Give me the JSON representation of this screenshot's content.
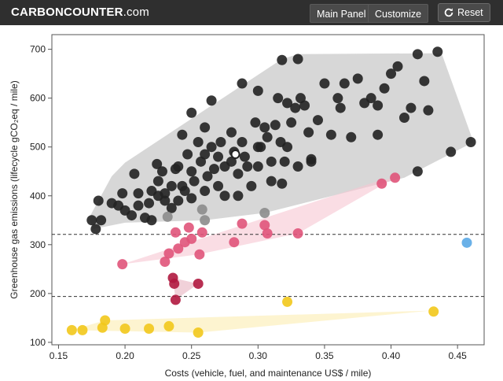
{
  "header": {
    "logo_bold": "CARBON",
    "logo_mid": "COUNTER",
    "logo_suffix": ".com",
    "main_panel_label": "Main Panel",
    "customize_label": "Customize",
    "reset_label": "Reset",
    "reset_icon": "refresh-icon",
    "background_color": "#2f2f2f"
  },
  "chart_data": {
    "type": "scatter",
    "xlabel": "Costs (vehicle, fuel, and maintenance US$ / mile)",
    "ylabel": "Greenhouse gas emissions (lifecycle gCO₂eq / mile)",
    "xlim": [
      0.145,
      0.47
    ],
    "ylim": [
      95,
      730
    ],
    "xticks": [
      0.15,
      0.2,
      0.25,
      0.3,
      0.35,
      0.4,
      0.45
    ],
    "xtick_labels": [
      "0.15",
      "0.20",
      "0.25",
      "0.30",
      "0.35",
      "0.40",
      "0.45"
    ],
    "yticks": [
      100,
      200,
      300,
      400,
      500,
      600,
      700
    ],
    "ytick_labels": [
      "100",
      "200",
      "300",
      "400",
      "500",
      "600",
      "700"
    ],
    "reference_lines": [
      {
        "y": 321,
        "style": "dashed",
        "color": "#333333"
      },
      {
        "y": 194,
        "style": "dashed",
        "color": "#333333"
      }
    ],
    "regions": [
      {
        "fill": "#bdbdbd",
        "points": [
          [
            0.176,
            332
          ],
          [
            0.173,
            355
          ],
          [
            0.19,
            440
          ],
          [
            0.2,
            468
          ],
          [
            0.318,
            680
          ],
          [
            0.33,
            690
          ],
          [
            0.438,
            692
          ],
          [
            0.462,
            510
          ],
          [
            0.41,
            437
          ],
          [
            0.305,
            365
          ],
          [
            0.26,
            350
          ],
          [
            0.2,
            345
          ]
        ]
      },
      {
        "fill": "#f6c6d2",
        "points": [
          [
            0.198,
            260
          ],
          [
            0.39,
            430
          ],
          [
            0.403,
            437
          ],
          [
            0.33,
            323
          ],
          [
            0.255,
            280
          ]
        ]
      },
      {
        "fill": "#e8b2c0",
        "points": [
          [
            0.236,
            232
          ],
          [
            0.255,
            220
          ],
          [
            0.238,
            187
          ]
        ]
      },
      {
        "fill": "#fbecb0",
        "points": [
          [
            0.16,
            125
          ],
          [
            0.185,
            145
          ],
          [
            0.43,
            165
          ],
          [
            0.255,
            120
          ]
        ]
      }
    ],
    "series": [
      {
        "color": "#222222",
        "points": [
          [
            0.175,
            350
          ],
          [
            0.178,
            332
          ],
          [
            0.18,
            390
          ],
          [
            0.182,
            350
          ],
          [
            0.19,
            385
          ],
          [
            0.195,
            380
          ],
          [
            0.198,
            405
          ],
          [
            0.2,
            370
          ],
          [
            0.205,
            360
          ],
          [
            0.207,
            445
          ],
          [
            0.21,
            380
          ],
          [
            0.21,
            405
          ],
          [
            0.215,
            355
          ],
          [
            0.218,
            385
          ],
          [
            0.22,
            350
          ],
          [
            0.22,
            410
          ],
          [
            0.225,
            400
          ],
          [
            0.225,
            430
          ],
          [
            0.224,
            465
          ],
          [
            0.228,
            450
          ],
          [
            0.23,
            390
          ],
          [
            0.23,
            405
          ],
          [
            0.235,
            420
          ],
          [
            0.235,
            375
          ],
          [
            0.238,
            455
          ],
          [
            0.24,
            390
          ],
          [
            0.243,
            420
          ],
          [
            0.24,
            460
          ],
          [
            0.245,
            410
          ],
          [
            0.247,
            485
          ],
          [
            0.25,
            450
          ],
          [
            0.25,
            395
          ],
          [
            0.252,
            430
          ],
          [
            0.255,
            510
          ],
          [
            0.257,
            470
          ],
          [
            0.26,
            540
          ],
          [
            0.26,
            410
          ],
          [
            0.262,
            440
          ],
          [
            0.265,
            500
          ],
          [
            0.267,
            455
          ],
          [
            0.27,
            480
          ],
          [
            0.27,
            420
          ],
          [
            0.272,
            510
          ],
          [
            0.275,
            460
          ],
          [
            0.275,
            400
          ],
          [
            0.28,
            470
          ],
          [
            0.28,
            530
          ],
          [
            0.282,
            490
          ],
          [
            0.285,
            445
          ],
          [
            0.285,
            400
          ],
          [
            0.288,
            510
          ],
          [
            0.29,
            480
          ],
          [
            0.292,
            460
          ],
          [
            0.295,
            420
          ],
          [
            0.298,
            550
          ],
          [
            0.3,
            460
          ],
          [
            0.302,
            500
          ],
          [
            0.305,
            540
          ],
          [
            0.307,
            520
          ],
          [
            0.31,
            470
          ],
          [
            0.31,
            430
          ],
          [
            0.313,
            545
          ],
          [
            0.315,
            600
          ],
          [
            0.317,
            510
          ],
          [
            0.318,
            425
          ],
          [
            0.32,
            470
          ],
          [
            0.322,
            590
          ],
          [
            0.325,
            550
          ],
          [
            0.328,
            580
          ],
          [
            0.33,
            460
          ],
          [
            0.332,
            600
          ],
          [
            0.335,
            585
          ],
          [
            0.338,
            530
          ],
          [
            0.34,
            475
          ],
          [
            0.345,
            555
          ],
          [
            0.35,
            630
          ],
          [
            0.355,
            525
          ],
          [
            0.36,
            600
          ],
          [
            0.362,
            580
          ],
          [
            0.365,
            630
          ],
          [
            0.37,
            520
          ],
          [
            0.375,
            640
          ],
          [
            0.38,
            590
          ],
          [
            0.385,
            600
          ],
          [
            0.39,
            585
          ],
          [
            0.395,
            620
          ],
          [
            0.4,
            650
          ],
          [
            0.405,
            665
          ],
          [
            0.41,
            560
          ],
          [
            0.415,
            580
          ],
          [
            0.42,
            690
          ],
          [
            0.425,
            635
          ],
          [
            0.428,
            575
          ],
          [
            0.435,
            695
          ],
          [
            0.445,
            490
          ],
          [
            0.46,
            510
          ],
          [
            0.25,
            570
          ],
          [
            0.265,
            595
          ],
          [
            0.288,
            630
          ],
          [
            0.3,
            615
          ],
          [
            0.318,
            678
          ],
          [
            0.33,
            680
          ],
          [
            0.26,
            485
          ],
          [
            0.243,
            525
          ],
          [
            0.3,
            500
          ],
          [
            0.322,
            500
          ],
          [
            0.34,
            470
          ],
          [
            0.42,
            450
          ],
          [
            0.39,
            525
          ]
        ]
      },
      {
        "color": "#8c8c8c",
        "points": [
          [
            0.232,
            357
          ],
          [
            0.258,
            372
          ],
          [
            0.26,
            350
          ],
          [
            0.305,
            365
          ]
        ]
      },
      {
        "color": "#e0547a",
        "points": [
          [
            0.198,
            260
          ],
          [
            0.23,
            265
          ],
          [
            0.233,
            282
          ],
          [
            0.238,
            325
          ],
          [
            0.24,
            292
          ],
          [
            0.245,
            305
          ],
          [
            0.248,
            335
          ],
          [
            0.25,
            312
          ],
          [
            0.256,
            280
          ],
          [
            0.258,
            325
          ],
          [
            0.282,
            305
          ],
          [
            0.288,
            343
          ],
          [
            0.305,
            340
          ],
          [
            0.307,
            323
          ],
          [
            0.33,
            323
          ],
          [
            0.393,
            425
          ],
          [
            0.403,
            437
          ]
        ]
      },
      {
        "color": "#b0183f",
        "points": [
          [
            0.236,
            232
          ],
          [
            0.237,
            220
          ],
          [
            0.238,
            187
          ],
          [
            0.255,
            220
          ]
        ]
      },
      {
        "color": "#f2c81b",
        "points": [
          [
            0.16,
            125
          ],
          [
            0.168,
            125
          ],
          [
            0.183,
            130
          ],
          [
            0.185,
            145
          ],
          [
            0.2,
            128
          ],
          [
            0.218,
            128
          ],
          [
            0.233,
            133
          ],
          [
            0.255,
            120
          ],
          [
            0.322,
            183
          ],
          [
            0.432,
            163
          ]
        ]
      },
      {
        "color": "#5aa8e6",
        "points": [
          [
            0.457,
            304
          ]
        ]
      }
    ],
    "highlight_point": {
      "x": 0.283,
      "y": 485,
      "color": "#ffffff",
      "stroke": "#222222"
    }
  }
}
